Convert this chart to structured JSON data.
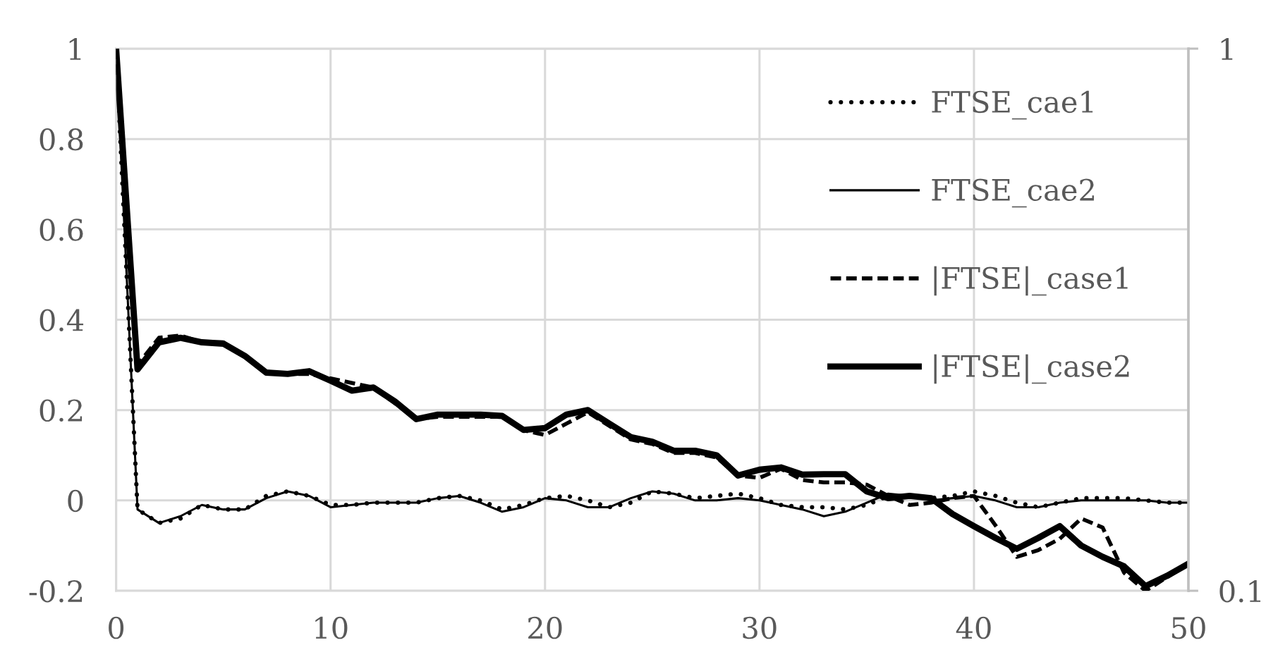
{
  "chart_data": {
    "type": "line",
    "x": [
      0,
      1,
      2,
      3,
      4,
      5,
      6,
      7,
      8,
      9,
      10,
      11,
      12,
      13,
      14,
      15,
      16,
      17,
      18,
      19,
      20,
      21,
      22,
      23,
      24,
      25,
      26,
      27,
      28,
      29,
      30,
      31,
      32,
      33,
      34,
      35,
      36,
      37,
      38,
      39,
      40,
      41,
      42,
      43,
      44,
      45,
      46,
      47,
      48,
      49,
      50
    ],
    "xlim": [
      0,
      50
    ],
    "xticks": [
      0,
      10,
      20,
      30,
      40,
      50
    ],
    "ylim": [
      -0.2,
      1
    ],
    "yticks": [
      -0.2,
      0,
      0.2,
      0.4,
      0.6,
      0.8,
      1
    ],
    "y2lim": [
      0.1,
      1
    ],
    "y2ticks": [
      0.1,
      1
    ],
    "grid": true,
    "legend": "top right",
    "series": [
      {
        "name": "FTSE_cae1",
        "color": "#000000",
        "line_style": "dotted",
        "values": [
          1,
          -0.02,
          -0.05,
          -0.04,
          -0.01,
          -0.02,
          -0.02,
          0.01,
          0.02,
          0.01,
          -0.01,
          -0.01,
          -0.005,
          -0.005,
          -0.005,
          0.005,
          0.01,
          0,
          -0.02,
          -0.01,
          0.005,
          0.01,
          0,
          -0.015,
          -0.005,
          0.02,
          0.015,
          0.005,
          0.01,
          0.015,
          0.005,
          -0.01,
          -0.015,
          -0.015,
          -0.02,
          -0.01,
          0.01,
          0.01,
          0.005,
          0.01,
          0.02,
          0.01,
          -0.005,
          -0.015,
          -0.005,
          0.005,
          0.005,
          0.005,
          0,
          -0.005,
          -0.005
        ]
      },
      {
        "name": "FTSE_cae2",
        "color": "#000000",
        "line_style": "solid",
        "values": [
          1,
          -0.02,
          -0.05,
          -0.035,
          -0.01,
          -0.02,
          -0.02,
          0.005,
          0.02,
          0.01,
          -0.015,
          -0.01,
          -0.005,
          -0.005,
          -0.005,
          0.005,
          0.01,
          -0.005,
          -0.025,
          -0.015,
          0.005,
          0,
          -0.015,
          -0.015,
          0.005,
          0.02,
          0.015,
          0,
          0,
          0.005,
          0,
          -0.01,
          -0.02,
          -0.035,
          -0.025,
          -0.005,
          0.015,
          0.01,
          0,
          0.005,
          0.01,
          0,
          -0.015,
          -0.015,
          -0.005,
          0,
          0,
          0,
          0,
          -0.005,
          -0.005
        ]
      },
      {
        "name": "|FTSE|_case1",
        "color": "#000000",
        "line_style": "dashed",
        "values": [
          1,
          0.3,
          0.36,
          0.365,
          0.35,
          0.35,
          0.32,
          0.285,
          0.28,
          0.28,
          0.27,
          0.26,
          0.25,
          0.215,
          0.18,
          0.185,
          0.185,
          0.185,
          0.185,
          0.155,
          0.145,
          0.17,
          0.195,
          0.165,
          0.135,
          0.125,
          0.105,
          0.105,
          0.095,
          0.055,
          0.05,
          0.07,
          0.045,
          0.04,
          0.04,
          0.035,
          0.01,
          -0.01,
          -0.005,
          0.005,
          0.01,
          -0.055,
          -0.125,
          -0.11,
          -0.085,
          -0.04,
          -0.06,
          -0.16,
          -0.2,
          -0.17,
          -0.14
        ]
      },
      {
        "name": "|FTSE|_case2",
        "color": "#000000",
        "line_style": "solid",
        "values": [
          1,
          0.29,
          0.35,
          0.36,
          0.35,
          0.347,
          0.32,
          0.283,
          0.28,
          0.286,
          0.265,
          0.243,
          0.25,
          0.219,
          0.18,
          0.19,
          0.19,
          0.19,
          0.187,
          0.156,
          0.16,
          0.19,
          0.2,
          0.17,
          0.14,
          0.13,
          0.11,
          0.11,
          0.1,
          0.055,
          0.068,
          0.073,
          0.057,
          0.058,
          0.058,
          0.02,
          0.005,
          0.01,
          0.005,
          -0.03,
          -0.057,
          -0.083,
          -0.107,
          -0.083,
          -0.057,
          -0.1,
          -0.125,
          -0.146,
          -0.19,
          -0.167,
          -0.14
        ]
      }
    ]
  }
}
